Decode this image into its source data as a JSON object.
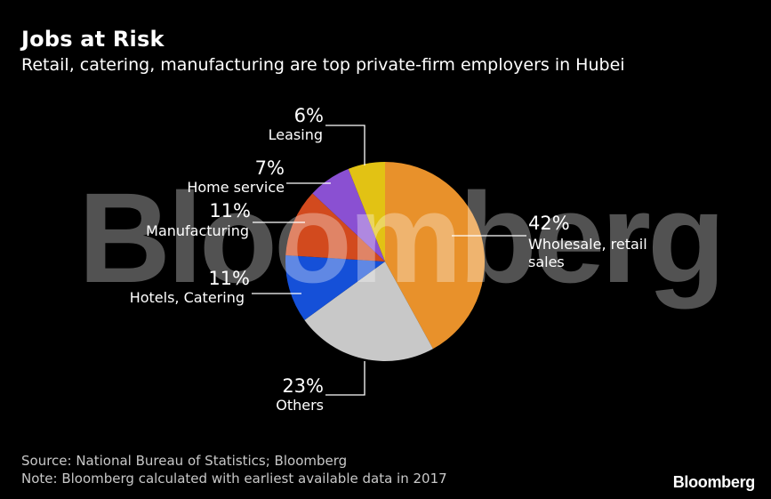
{
  "header": {
    "title": "Jobs at Risk",
    "subtitle": "Retail, catering, manufacturing are top private-firm employers in Hubei"
  },
  "watermark": "Bloomberg",
  "chart_data": {
    "type": "pie",
    "title": "Jobs at Risk",
    "subtitle": "Retail, catering, manufacturing are top private-firm employers in Hubei",
    "unit": "%",
    "slices": [
      {
        "label": "Wholesale, retail sales",
        "label_lines": [
          "Wholesale, retail",
          "sales"
        ],
        "value": 42,
        "display": "42%",
        "color": "#E8912B"
      },
      {
        "label": "Others",
        "label_lines": [
          "Others"
        ],
        "value": 23,
        "display": "23%",
        "color": "#C8C8C8"
      },
      {
        "label": "Hotels, Catering",
        "label_lines": [
          "Hotels, Catering"
        ],
        "value": 11,
        "display": "11%",
        "color": "#1550D8"
      },
      {
        "label": "Manufacturing",
        "label_lines": [
          "Manufacturing"
        ],
        "value": 11,
        "display": "11%",
        "color": "#D24A1E"
      },
      {
        "label": "Home service",
        "label_lines": [
          "Home service"
        ],
        "value": 7,
        "display": "7%",
        "color": "#8A50D2"
      },
      {
        "label": "Leasing",
        "label_lines": [
          "Leasing"
        ],
        "value": 6,
        "display": "6%",
        "color": "#E2C214"
      }
    ]
  },
  "footer": {
    "source": "Source: National Bureau of Statistics; Bloomberg",
    "note": "Note: Bloomberg calculated with earliest available data in 2017",
    "brand": "Bloomberg"
  }
}
